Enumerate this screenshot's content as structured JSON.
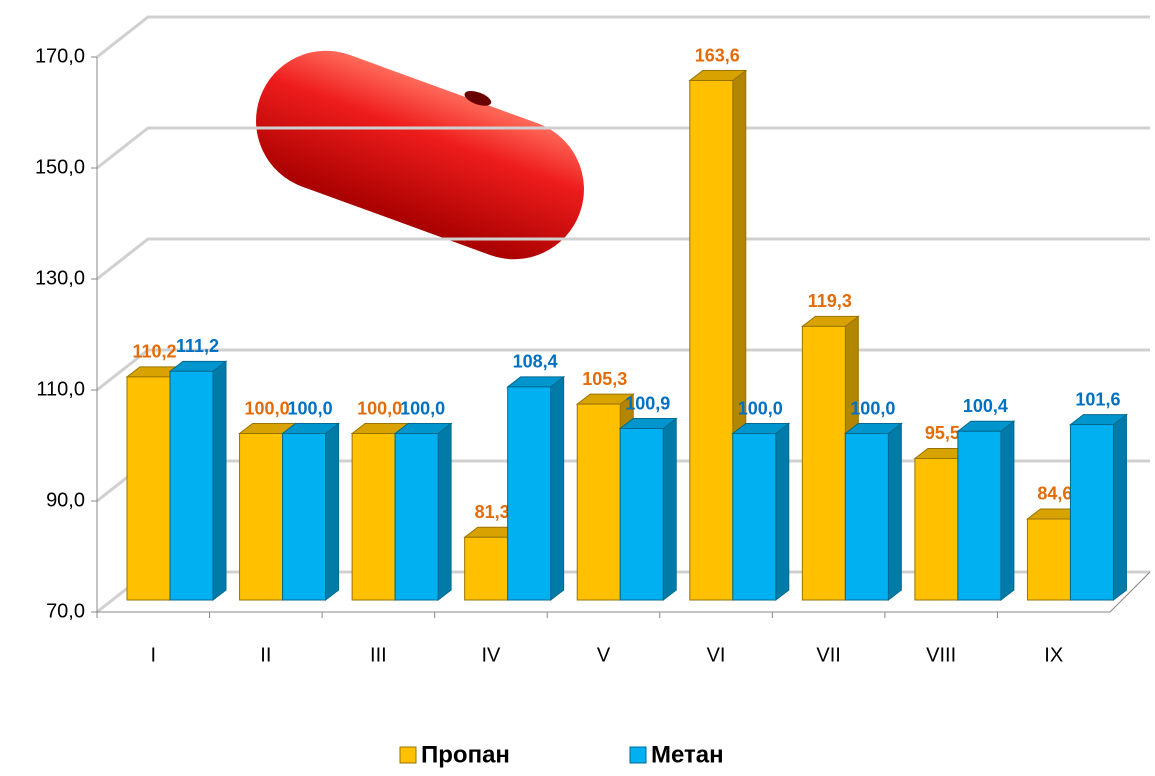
{
  "chart_data": {
    "type": "bar3d",
    "categories": [
      "I",
      "II",
      "III",
      "IV",
      "V",
      "VI",
      "VII",
      "VIII",
      "IX"
    ],
    "series": [
      {
        "name": "Пропан",
        "color": "#ffc000",
        "label_color": "#e36c09",
        "values": [
          110.2,
          100.0,
          100.0,
          81.3,
          105.3,
          163.6,
          119.3,
          95.5,
          84.6
        ],
        "value_labels": [
          "110,2",
          "100,0",
          "100,0",
          "81,3",
          "105,3",
          "163,6",
          "119,3",
          "95,5",
          "84,6"
        ]
      },
      {
        "name": "Метан",
        "color": "#00b0f0",
        "label_color": "#0070c0",
        "values": [
          111.2,
          100.0,
          100.0,
          108.4,
          100.9,
          100.0,
          100.0,
          100.4,
          101.6
        ],
        "value_labels": [
          "111,2",
          "100,0",
          "100,0",
          "108,4",
          "100,9",
          "100,0",
          "100,0",
          "100,4",
          "101,6"
        ]
      }
    ],
    "ylim": [
      70,
      170
    ],
    "yticks": [
      {
        "value": 70,
        "label": "70,0"
      },
      {
        "value": 90,
        "label": "90,0"
      },
      {
        "value": 110,
        "label": "110,0"
      },
      {
        "value": 130,
        "label": "130,0"
      },
      {
        "value": 150,
        "label": "150,0"
      },
      {
        "value": 170,
        "label": "170,0"
      }
    ],
    "grid": true
  }
}
